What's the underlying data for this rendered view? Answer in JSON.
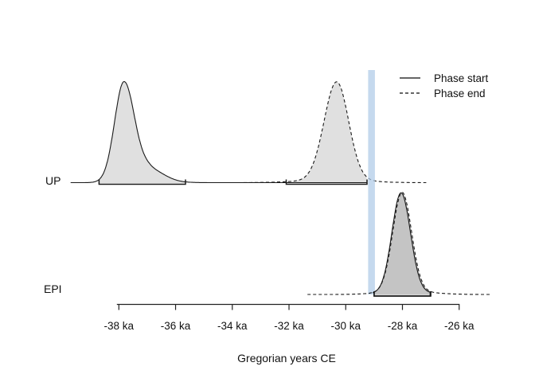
{
  "chart_data": {
    "type": "area",
    "title": "",
    "description": "Posterior density curves of phase boundary estimates (start = solid, end = dashed) for two phases plotted against calendar age; shaded bars under each peak mark credible intervals; a vertical blue band marks an event at about -29 ka.",
    "xlabel": "Gregorian years CE",
    "x_unit": "ka",
    "xlim_ka": [
      -39.8,
      -24.5
    ],
    "grid": false,
    "x_ticks": [
      {
        "ka": -38,
        "label": "-38 ka"
      },
      {
        "ka": -36,
        "label": "-36 ka"
      },
      {
        "ka": -34,
        "label": "-34 ka"
      },
      {
        "ka": -32,
        "label": "-32 ka"
      },
      {
        "ka": -30,
        "label": "-30 ka"
      },
      {
        "ka": -28,
        "label": "-28 ka"
      },
      {
        "ka": -26,
        "label": "-26 ka"
      }
    ],
    "legend": {
      "position": "top-right",
      "items": [
        {
          "label": "Phase start",
          "line_style": "solid"
        },
        {
          "label": "Phase end",
          "line_style": "dashed"
        }
      ]
    },
    "rows": [
      {
        "label": "UP"
      },
      {
        "label": "EPI"
      }
    ],
    "event_band": {
      "x_range_ka": [
        -29.21,
        -28.97
      ],
      "color": "#aecbe8",
      "opacity": 0.72
    },
    "colors": {
      "fill_gray": "rgba(0,0,0,0.12)",
      "line": "#1a1a1a",
      "axis": "#222222"
    },
    "curves": [
      {
        "row": "UP",
        "name": "UP phase start",
        "style": "solid",
        "peak_ka": -37.8,
        "interval_ka": [
          -38.7,
          -35.65
        ],
        "range_ka": [
          -39.7,
          -29.26
        ],
        "components": [
          {
            "mu": -37.82,
            "sl": 0.33,
            "sr": 0.38,
            "amp": 1.0
          },
          {
            "mu": -36.9,
            "sl": 0.3,
            "sr": 0.5,
            "amp": 0.11
          },
          {
            "mu": -37.6,
            "sl": 0.5,
            "sr": 0.9,
            "amp": 0.035
          }
        ]
      },
      {
        "row": "UP",
        "name": "UP phase end",
        "style": "dashed",
        "peak_ka": -30.3,
        "interval_ka": [
          -32.1,
          -29.25
        ],
        "range_ka": [
          -33.6,
          -27.15
        ],
        "components": [
          {
            "mu": -30.32,
            "sl": 0.44,
            "sr": 0.42,
            "amp": 1.0
          },
          {
            "mu": -30.3,
            "sl": 1.2,
            "sr": 1.0,
            "amp": 0.03
          }
        ]
      },
      {
        "row": "EPI",
        "name": "EPI phase start",
        "style": "solid",
        "peak_ka": -28.0,
        "interval_ka": [
          -29.0,
          -27.02
        ],
        "range_ka": [
          -29.05,
          -27.0
        ],
        "components": [
          {
            "mu": -28.05,
            "sl": 0.32,
            "sr": 0.33,
            "amp": 1.0
          },
          {
            "mu": -28.0,
            "sl": 0.7,
            "sr": 0.8,
            "amp": 0.03
          }
        ]
      },
      {
        "row": "EPI",
        "name": "EPI phase end",
        "style": "dashed",
        "peak_ka": -28.0,
        "interval_ka": [
          -29.0,
          -27.0
        ],
        "range_ka": [
          -31.35,
          -24.85
        ],
        "components": [
          {
            "mu": -28.01,
            "sl": 0.33,
            "sr": 0.33,
            "amp": 1.0
          },
          {
            "mu": -27.95,
            "sl": 0.8,
            "sr": 0.9,
            "amp": 0.035
          }
        ]
      }
    ]
  }
}
